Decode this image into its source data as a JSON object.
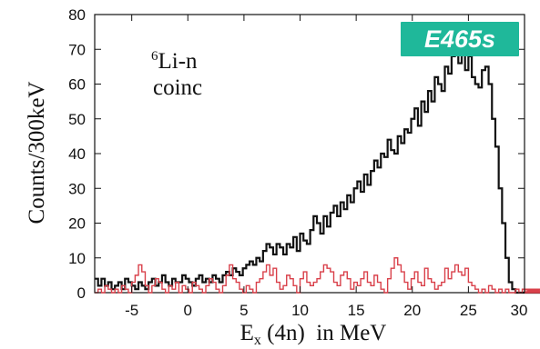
{
  "chart_data": {
    "type": "histogram",
    "title": "",
    "badge": {
      "text": "E465s",
      "color": "#1fb89a"
    },
    "annotation": {
      "superscript": "6",
      "line1": "Li-n",
      "line2": "coinc"
    },
    "xlabel": {
      "main": "E",
      "sub": "x",
      "rest": " (4n)  in MeV"
    },
    "ylabel": "Counts/300keV",
    "xlim": [
      -8.3,
      30
    ],
    "ylim": [
      0,
      80
    ],
    "xticks": [
      -5,
      0,
      5,
      10,
      15,
      20,
      25,
      30
    ],
    "yticks": [
      0,
      10,
      20,
      30,
      40,
      50,
      60,
      70,
      80
    ],
    "bin_width": 0.3,
    "x_start": -8.3,
    "series": [
      {
        "color": "#111111",
        "values": [
          4,
          2,
          4,
          2,
          3,
          1,
          2,
          3,
          1,
          4,
          3,
          2,
          1,
          3,
          2,
          1,
          3,
          4,
          2,
          3,
          5,
          3,
          2,
          4,
          3,
          3,
          5,
          4,
          3,
          2,
          4,
          5,
          3,
          4,
          3,
          5,
          4,
          3,
          5,
          6,
          5,
          7,
          6,
          5,
          7,
          8,
          9,
          8,
          10,
          9,
          12,
          14,
          13,
          11,
          14,
          13,
          11,
          14,
          13,
          16,
          12,
          17,
          15,
          14,
          18,
          22,
          20,
          17,
          22,
          19,
          23,
          25,
          22,
          26,
          24,
          28,
          26,
          30,
          32,
          29,
          34,
          31,
          35,
          38,
          36,
          40,
          39,
          44,
          41,
          40,
          45,
          43,
          47,
          46,
          50,
          53,
          48,
          55,
          52,
          58,
          55,
          62,
          60,
          58,
          65,
          63,
          68,
          72,
          66,
          70,
          64,
          68,
          62,
          60,
          59,
          64,
          65,
          60,
          50,
          42,
          30,
          20,
          10,
          3,
          1,
          0,
          0,
          0,
          0,
          0,
          0,
          0,
          0,
          0,
          0,
          0,
          0,
          0,
          0,
          0,
          0,
          0,
          0,
          0,
          0,
          0,
          0,
          0,
          0,
          0,
          0,
          0,
          0,
          0,
          0,
          0,
          0,
          0,
          0,
          0,
          0,
          0,
          0,
          0,
          0,
          0,
          0
        ]
      },
      {
        "color": "#d9404a",
        "values": [
          0,
          1,
          0,
          2,
          1,
          0,
          1,
          0,
          2,
          1,
          0,
          3,
          5,
          8,
          6,
          2,
          0,
          2,
          4,
          3,
          1,
          0,
          2,
          1,
          3,
          0,
          2,
          1,
          0,
          3,
          2,
          1,
          0,
          2,
          4,
          3,
          1,
          0,
          2,
          5,
          8,
          4,
          3,
          1,
          0,
          2,
          1,
          0,
          3,
          4,
          6,
          8,
          5,
          7,
          3,
          1,
          2,
          5,
          4,
          2,
          0,
          4,
          6,
          3,
          2,
          3,
          4,
          6,
          8,
          7,
          6,
          3,
          2,
          5,
          6,
          4,
          1,
          3,
          2,
          4,
          6,
          3,
          2,
          5,
          3,
          1,
          0,
          4,
          7,
          10,
          8,
          6,
          3,
          1,
          4,
          6,
          3,
          2,
          7,
          4,
          3,
          1,
          2,
          3,
          7,
          4,
          6,
          8,
          6,
          5,
          7,
          3,
          2,
          1,
          0,
          1,
          0,
          2,
          1,
          0,
          1,
          0,
          1,
          0,
          0,
          1,
          0,
          1,
          0,
          0,
          1,
          0,
          0,
          1,
          0,
          0,
          0,
          0,
          1,
          0,
          0,
          1,
          0,
          0,
          0,
          0,
          0,
          0,
          0,
          0,
          0,
          0,
          0,
          0,
          0,
          0,
          0,
          0,
          0,
          0,
          0,
          0,
          0,
          0,
          0,
          0,
          0
        ]
      }
    ]
  }
}
